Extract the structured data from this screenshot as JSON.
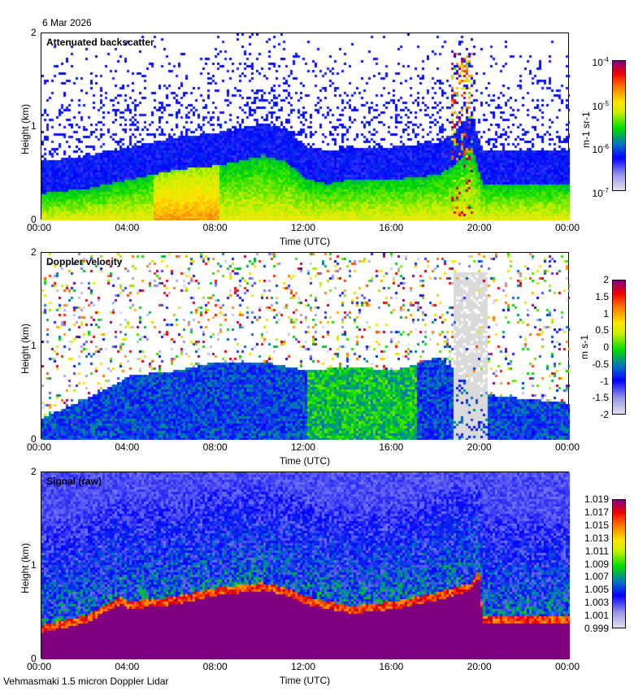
{
  "date": "6 Mar 2026",
  "footer": "Vehmasmaki 1.5 micron Doppler Lidar",
  "chart_data": [
    {
      "type": "heatmap",
      "title": "Attenuated backscatter",
      "xlabel": "Time (UTC)",
      "ylabel": "Height (km)",
      "xticks": [
        "00:00",
        "04:00",
        "08:00",
        "12:00",
        "16:00",
        "20:00",
        "00:00"
      ],
      "yticks": [
        "0",
        "1",
        "2"
      ],
      "xlim_hours": [
        0,
        24
      ],
      "ylim_km": [
        0,
        2
      ],
      "colorbar": {
        "label": "m-1 sr-1",
        "label_main": "m",
        "label_sup1": "-1",
        "label_mid": " sr",
        "label_sup2": "-1",
        "scale": "log",
        "range": [
          1e-07,
          0.0001
        ],
        "ticks": [
          {
            "base": "10",
            "exp": "-4"
          },
          {
            "base": "10",
            "exp": "-5"
          },
          {
            "base": "10",
            "exp": "-6"
          },
          {
            "base": "10",
            "exp": "-7"
          }
        ]
      },
      "boundary_layer_top_km": {
        "hours": [
          0,
          2,
          4,
          6,
          8,
          10,
          11,
          12,
          13,
          14,
          16,
          18,
          18.7,
          19.5,
          20,
          22,
          24
        ],
        "values": [
          0.3,
          0.35,
          0.45,
          0.55,
          0.6,
          0.7,
          0.65,
          0.45,
          0.4,
          0.45,
          0.45,
          0.5,
          0.6,
          0.8,
          0.4,
          0.4,
          0.4
        ]
      }
    },
    {
      "type": "heatmap",
      "title": "Doppler velocity",
      "xlabel": "Time (UTC)",
      "ylabel": "Height (km)",
      "xticks": [
        "00:00",
        "04:00",
        "08:00",
        "12:00",
        "16:00",
        "20:00",
        "00:00"
      ],
      "yticks": [
        "0",
        "1",
        "2"
      ],
      "xlim_hours": [
        0,
        24
      ],
      "ylim_km": [
        0,
        2
      ],
      "colorbar": {
        "label": "m s-1",
        "label_main": "m s",
        "label_sup": "-1",
        "range": [
          -2,
          2
        ],
        "ticks": [
          "2",
          "1.5",
          "1",
          "0.5",
          "0",
          "-0.5",
          "-1",
          "-1.5",
          "-2"
        ]
      },
      "boundary_layer_top_km": {
        "hours": [
          0,
          2,
          4,
          6,
          8,
          10,
          12,
          14,
          16,
          18,
          20,
          24
        ],
        "values": [
          0.25,
          0.45,
          0.7,
          0.75,
          0.85,
          0.85,
          0.75,
          0.8,
          0.75,
          0.9,
          0.5,
          0.4
        ]
      }
    },
    {
      "type": "heatmap",
      "title": "Signal (raw)",
      "xlabel": "Time (UTC)",
      "ylabel": "Height (km)",
      "xticks": [
        "00:00",
        "04:00",
        "08:00",
        "12:00",
        "16:00",
        "20:00",
        "00:00"
      ],
      "yticks": [
        "0",
        "1",
        "2"
      ],
      "xlim_hours": [
        0,
        24
      ],
      "ylim_km": [
        0,
        2
      ],
      "colorbar": {
        "label": "",
        "range": [
          0.999,
          1.019
        ],
        "ticks": [
          "1.019",
          "1.017",
          "1.015",
          "1.013",
          "1.011",
          "1.009",
          "1.007",
          "1.005",
          "1.003",
          "1.001",
          "0.999"
        ]
      },
      "boundary_layer_top_km": {
        "hours": [
          0,
          1,
          2,
          3.5,
          4,
          6,
          8,
          10,
          11,
          12,
          13,
          14,
          16,
          18,
          19.5,
          19.8,
          20,
          22,
          24
        ],
        "values": [
          0.3,
          0.35,
          0.4,
          0.6,
          0.55,
          0.6,
          0.7,
          0.75,
          0.7,
          0.6,
          0.55,
          0.5,
          0.55,
          0.65,
          0.75,
          0.9,
          0.4,
          0.4,
          0.4
        ]
      }
    }
  ]
}
